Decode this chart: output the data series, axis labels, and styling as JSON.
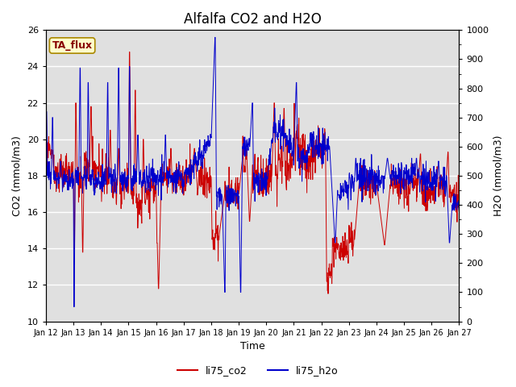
{
  "title": "Alfalfa CO2 and H2O",
  "xlabel": "Time",
  "ylabel_left": "CO2 (mmol/m3)",
  "ylabel_right": "H2O (mmol/m3)",
  "ylim_left": [
    10,
    26
  ],
  "ylim_right": [
    0,
    1000
  ],
  "yticks_left": [
    10,
    12,
    14,
    16,
    18,
    20,
    22,
    24,
    26
  ],
  "yticks_right": [
    0,
    100,
    200,
    300,
    400,
    500,
    600,
    700,
    800,
    900,
    1000
  ],
  "xtick_labels": [
    "Jan 12",
    "Jan 13",
    "Jan 14",
    "Jan 15",
    "Jan 16",
    "Jan 17",
    "Jan 18",
    "Jan 19",
    "Jan 20",
    "Jan 21",
    "Jan 22",
    "Jan 23",
    "Jan 24",
    "Jan 25",
    "Jan 26",
    "Jan 27"
  ],
  "annotation_text": "TA_flux",
  "annotation_bg": "#ffffcc",
  "annotation_border": "#aa8800",
  "annotation_text_color": "#880000",
  "line_color_co2": "#cc0000",
  "line_color_h2o": "#0000cc",
  "bg_color": "#e0e0e0",
  "legend_label_co2": "li75_co2",
  "legend_label_h2o": "li75_h2o",
  "title_fontsize": 12,
  "axis_label_fontsize": 9,
  "tick_fontsize": 8
}
